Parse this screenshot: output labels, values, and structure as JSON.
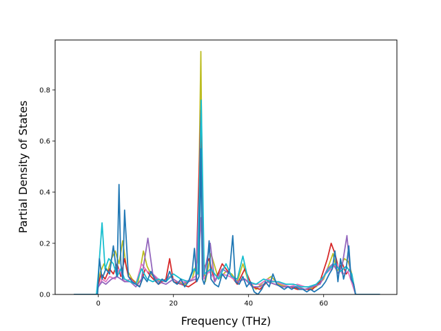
{
  "chart_data": {
    "type": "line",
    "title": "",
    "xlabel": "Frequency (THz)",
    "ylabel": "Partial Density of States",
    "xlim": [
      -11.5,
      79.5
    ],
    "ylim": [
      0,
      0.995
    ],
    "xticks": [
      0,
      20,
      40,
      60
    ],
    "xtick_labels": [
      "0",
      "20",
      "40",
      "60"
    ],
    "yticks": [
      0.0,
      0.2,
      0.4,
      0.6,
      0.8
    ],
    "ytick_labels": [
      "0.0",
      "0.2",
      "0.4",
      "0.6",
      "0.8"
    ],
    "grid": false,
    "legend": "none",
    "series": [
      {
        "color": "#bcbd22",
        "x": [
          -6.5,
          -0.5,
          0,
          0.6,
          1.5,
          2.5,
          3.5,
          4.5,
          5.5,
          6.5,
          7.5,
          9,
          10.5,
          12,
          13,
          14,
          15.5,
          17,
          19,
          21,
          23,
          25,
          26.5,
          27.3,
          27.8,
          28.5,
          30,
          32,
          34,
          35.5,
          37,
          38.5,
          40,
          42,
          44,
          46,
          48,
          50,
          52,
          54,
          56,
          58,
          60,
          61.5,
          62.5,
          63.5,
          64.5,
          65.5,
          66.5,
          67.5,
          68.5,
          75
        ],
        "y": [
          0,
          0,
          0.05,
          0.09,
          0.12,
          0.09,
          0.14,
          0.17,
          0.12,
          0.21,
          0.1,
          0.06,
          0.04,
          0.17,
          0.11,
          0.08,
          0.06,
          0.05,
          0.07,
          0.05,
          0.04,
          0.06,
          0.14,
          0.95,
          0.2,
          0.05,
          0.16,
          0.06,
          0.09,
          0.08,
          0.05,
          0.12,
          0.05,
          0.02,
          0.05,
          0.07,
          0.04,
          0.03,
          0.03,
          0.02,
          0.02,
          0.03,
          0.06,
          0.12,
          0.16,
          0.09,
          0.11,
          0.14,
          0.13,
          0.08,
          0,
          0
        ]
      },
      {
        "color": "#d62728",
        "x": [
          -6.5,
          -0.5,
          0,
          0.8,
          1.8,
          3,
          4,
          5,
          6,
          7,
          8,
          9.5,
          11,
          12.5,
          14,
          16,
          18,
          19,
          20,
          22,
          24,
          26,
          27.3,
          28,
          29.5,
          31,
          33,
          35,
          37,
          39,
          41,
          43,
          45,
          47,
          49,
          51,
          53,
          55,
          57,
          59,
          61,
          62,
          63,
          64,
          65,
          66,
          67,
          68.5,
          75
        ],
        "y": [
          0,
          0,
          0.04,
          0.08,
          0.06,
          0.1,
          0.08,
          0.12,
          0.07,
          0.14,
          0.07,
          0.05,
          0.03,
          0.1,
          0.07,
          0.04,
          0.06,
          0.14,
          0.05,
          0.04,
          0.03,
          0.05,
          0.72,
          0.1,
          0.14,
          0.05,
          0.12,
          0.08,
          0.04,
          0.1,
          0.03,
          0.02,
          0.05,
          0.04,
          0.03,
          0.03,
          0.02,
          0.02,
          0.02,
          0.05,
          0.14,
          0.2,
          0.16,
          0.1,
          0.12,
          0.08,
          0.1,
          0,
          0
        ]
      },
      {
        "color": "#e377c2",
        "x": [
          -6.5,
          -0.5,
          0,
          1,
          2,
          3,
          4.5,
          5.5,
          7,
          8.5,
          10,
          11.5,
          13,
          14.5,
          16,
          17.5,
          19,
          21,
          23,
          25,
          26.5,
          27.3,
          28,
          29.5,
          31,
          33,
          35,
          37,
          39,
          41,
          43,
          45,
          47,
          49,
          51,
          53,
          55,
          57,
          59,
          60.5,
          62,
          63.5,
          65,
          66.5,
          68.5,
          75
        ],
        "y": [
          0,
          0,
          0.03,
          0.06,
          0.05,
          0.07,
          0.06,
          0.1,
          0.05,
          0.06,
          0.04,
          0.12,
          0.09,
          0.08,
          0.06,
          0.05,
          0.07,
          0.05,
          0.05,
          0.06,
          0.08,
          0.3,
          0.06,
          0.09,
          0.06,
          0.08,
          0.07,
          0.05,
          0.06,
          0.04,
          0.04,
          0.06,
          0.05,
          0.04,
          0.03,
          0.04,
          0.03,
          0.03,
          0.04,
          0.08,
          0.1,
          0.12,
          0.08,
          0.09,
          0,
          0
        ]
      },
      {
        "color": "#9467bd",
        "x": [
          -6.5,
          -0.5,
          0,
          1,
          2,
          3.5,
          5,
          6,
          7,
          8.5,
          10,
          11.5,
          13.2,
          14.5,
          16,
          18,
          20,
          22,
          24,
          26,
          27.3,
          28,
          29.8,
          31,
          33,
          35,
          37,
          39,
          41,
          43,
          45,
          47,
          49,
          51,
          53,
          55,
          57,
          59,
          61,
          62.5,
          64,
          65,
          66.2,
          67,
          68.5,
          75
        ],
        "y": [
          0,
          0,
          0.03,
          0.05,
          0.04,
          0.06,
          0.07,
          0.06,
          0.05,
          0.05,
          0.03,
          0.06,
          0.22,
          0.08,
          0.05,
          0.04,
          0.06,
          0.04,
          0.05,
          0.06,
          0.56,
          0.07,
          0.2,
          0.05,
          0.1,
          0.08,
          0.05,
          0.06,
          0.03,
          0.03,
          0.05,
          0.04,
          0.03,
          0.03,
          0.03,
          0.02,
          0.03,
          0.04,
          0.1,
          0.12,
          0.08,
          0.12,
          0.23,
          0.1,
          0,
          0
        ]
      },
      {
        "color": "#17becf",
        "x": [
          -6.5,
          -0.5,
          0,
          1,
          1.8,
          2.8,
          4,
          5,
          6,
          7,
          8.5,
          10,
          11.5,
          13,
          14.5,
          16,
          18,
          20,
          22,
          24,
          25.5,
          26.5,
          27.4,
          28.2,
          30,
          32,
          34,
          35.5,
          37,
          38.5,
          40,
          42,
          44,
          46,
          48,
          50,
          52,
          54,
          56,
          58,
          60,
          61.5,
          63,
          64.5,
          66,
          67.5,
          68.5,
          75
        ],
        "y": [
          0,
          0,
          0.08,
          0.28,
          0.1,
          0.14,
          0.12,
          0.07,
          0.1,
          0.06,
          0.05,
          0.04,
          0.1,
          0.06,
          0.05,
          0.06,
          0.05,
          0.08,
          0.06,
          0.05,
          0.1,
          0.08,
          0.76,
          0.08,
          0.1,
          0.06,
          0.12,
          0.07,
          0.06,
          0.15,
          0.05,
          0.04,
          0.06,
          0.05,
          0.05,
          0.04,
          0.04,
          0.03,
          0.03,
          0.04,
          0.07,
          0.1,
          0.12,
          0.09,
          0.11,
          0.08,
          0,
          0
        ]
      },
      {
        "color": "#1f77b4",
        "x": [
          -6.5,
          -0.5,
          -0.2,
          0.3,
          1,
          2,
          3,
          4,
          5,
          5.5,
          6,
          6.5,
          7,
          8,
          9,
          10,
          11,
          12,
          13,
          14,
          15,
          16,
          17,
          18,
          19,
          20,
          21,
          22,
          23,
          24,
          25,
          25.6,
          26.2,
          26.8,
          27.3,
          27.7,
          28.2,
          28.8,
          29.5,
          30,
          31,
          32,
          33,
          34,
          35,
          35.8,
          36.5,
          37.5,
          38.5,
          39.5,
          40.5,
          41.5,
          42.5,
          43.5,
          44.5,
          45.5,
          46.5,
          47.5,
          48.5,
          49.5,
          50.5,
          51.5,
          52.5,
          53.5,
          54.5,
          55.5,
          56.5,
          57.5,
          58.5,
          59.5,
          60.5,
          61.5,
          62.3,
          63,
          63.8,
          64.5,
          65.3,
          66,
          66.7,
          67.3,
          68,
          68.5,
          75
        ],
        "y": [
          0,
          0,
          0,
          0.14,
          0.06,
          0.1,
          0.08,
          0.19,
          0.07,
          0.43,
          0.12,
          0.06,
          0.33,
          0.07,
          0.05,
          0.04,
          0.03,
          0.07,
          0.05,
          0.09,
          0.06,
          0.04,
          0.06,
          0.05,
          0.09,
          0.05,
          0.04,
          0.06,
          0.03,
          0.05,
          0.09,
          0.18,
          0.05,
          0.07,
          0.57,
          0.06,
          0.04,
          0.08,
          0.21,
          0.06,
          0.04,
          0.03,
          0.08,
          0.06,
          0.1,
          0.23,
          0.05,
          0.04,
          0.07,
          0.03,
          0.05,
          0.01,
          0,
          0.02,
          0.05,
          0.03,
          0.08,
          0.04,
          0.03,
          0.02,
          0.03,
          0.02,
          0.03,
          0.02,
          0.02,
          0.01,
          0.02,
          0.01,
          0.02,
          0.03,
          0.05,
          0.08,
          0.1,
          0.17,
          0.05,
          0.14,
          0.06,
          0.1,
          0.19,
          0.06,
          0.04,
          0,
          0
        ]
      }
    ]
  }
}
